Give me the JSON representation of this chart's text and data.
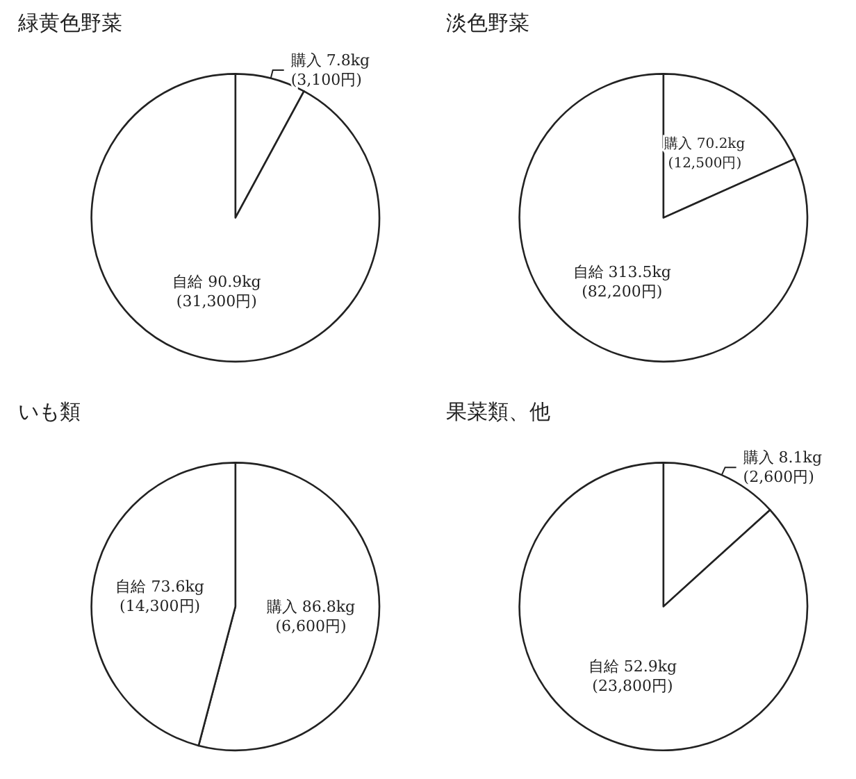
{
  "chart_data": [
    {
      "type": "pie",
      "title": "緑黄色野菜",
      "categories": [
        "購入",
        "自給"
      ],
      "values": [
        7.8,
        90.9
      ],
      "colors": [
        "#ffffff",
        "#ffffff"
      ],
      "value_labels": [
        "7.8kg\n(3,100円)",
        "90.9kg\n(31,300円)"
      ]
    },
    {
      "type": "pie",
      "title": "淡色野菜",
      "categories": [
        "購入",
        "自給"
      ],
      "values": [
        70.2,
        313.5
      ],
      "colors": [
        "#ffffff",
        "#ffffff"
      ],
      "value_labels": [
        "70.2kg\n(12,500円)",
        "313.5kg\n(82,200円)"
      ]
    },
    {
      "type": "pie",
      "title": "いも類",
      "categories": [
        "購入",
        "自給"
      ],
      "values": [
        86.8,
        73.6
      ],
      "colors": [
        "#ffffff",
        "#ffffff"
      ],
      "value_labels": [
        "86.8kg\n(6,600円)",
        "73.6kg\n(14,300円)"
      ]
    },
    {
      "type": "pie",
      "title": "果菜類、他",
      "categories": [
        "購入",
        "自給"
      ],
      "values": [
        8.1,
        52.9
      ],
      "colors": [
        "#ffffff",
        "#ffffff"
      ],
      "value_labels": [
        "8.1kg\n(2,600円)",
        "52.9kg\n(23,800円)"
      ]
    }
  ]
}
